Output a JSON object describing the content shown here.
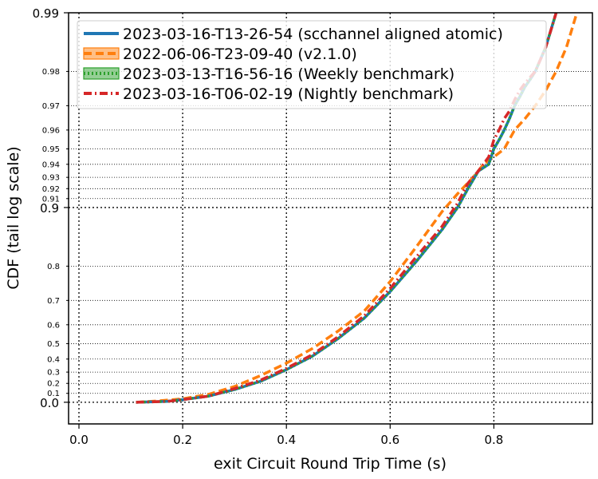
{
  "chart_data": {
    "type": "line",
    "title": "",
    "xlabel": "exit Circuit Round Trip Time (s)",
    "ylabel": "CDF (tail log scale)",
    "xlim": [
      -0.02,
      0.99
    ],
    "x_ticks": [
      0.0,
      0.2,
      0.4,
      0.6,
      0.8
    ],
    "x_tick_labels": [
      "0.0",
      "0.2",
      "0.4",
      "0.6",
      "0.8"
    ],
    "y_scale": "tail-log",
    "y_major_ticks": [
      0.0,
      0.9,
      0.99
    ],
    "y_major_labels": [
      "0.0",
      "0.9",
      "0.99"
    ],
    "y_minor_ticks": [
      0.1,
      0.2,
      0.3,
      0.4,
      0.5,
      0.6,
      0.7,
      0.8,
      0.91,
      0.92,
      0.93,
      0.94,
      0.95,
      0.96,
      0.97,
      0.98
    ],
    "y_minor_labels": [
      "0.1",
      "0.2",
      "0.3",
      "0.4",
      "0.5",
      "0.6",
      "0.7",
      "0.8",
      "0.91",
      "0.92",
      "0.93",
      "0.94",
      "0.95",
      "0.96",
      "0.97",
      "0.98"
    ],
    "grid": true,
    "legend_position": "top-left",
    "series": [
      {
        "name": "2023-03-16-T13-26-54 (scchannel aligned atomic)",
        "color": "#1f77b4",
        "style": "solid",
        "x": [
          0.11,
          0.17,
          0.2,
          0.25,
          0.3,
          0.35,
          0.4,
          0.45,
          0.5,
          0.55,
          0.6,
          0.65,
          0.7,
          0.73,
          0.75,
          0.77,
          0.79,
          0.8,
          0.81,
          0.82,
          0.83,
          0.84,
          0.85,
          0.86,
          0.87,
          0.88,
          0.9,
          0.92
        ],
        "y": [
          0.0,
          0.01,
          0.03,
          0.07,
          0.14,
          0.22,
          0.32,
          0.42,
          0.53,
          0.63,
          0.73,
          0.81,
          0.87,
          0.9,
          0.92,
          0.935,
          0.94,
          0.95,
          0.955,
          0.96,
          0.965,
          0.97,
          0.973,
          0.976,
          0.978,
          0.98,
          0.985,
          0.99
        ]
      },
      {
        "name": "2022-06-06-T23-09-40 (v2.1.0)",
        "color": "#ff7f0e",
        "style": "dashed",
        "x": [
          0.11,
          0.15,
          0.2,
          0.25,
          0.3,
          0.35,
          0.4,
          0.45,
          0.5,
          0.55,
          0.6,
          0.65,
          0.7,
          0.73,
          0.76,
          0.78,
          0.8,
          0.82,
          0.84,
          0.86,
          0.88,
          0.9,
          0.92,
          0.94,
          0.96
        ],
        "y": [
          0.0,
          0.015,
          0.04,
          0.09,
          0.17,
          0.27,
          0.37,
          0.47,
          0.57,
          0.66,
          0.76,
          0.84,
          0.895,
          0.915,
          0.93,
          0.94,
          0.945,
          0.95,
          0.96,
          0.965,
          0.97,
          0.975,
          0.98,
          0.985,
          0.99
        ]
      },
      {
        "name": "2023-03-13-T16-56-16 (Weekly benchmark)",
        "color": "#2ca02c",
        "style": "dotted",
        "x": [
          0.11,
          0.17,
          0.2,
          0.25,
          0.3,
          0.35,
          0.4,
          0.45,
          0.5,
          0.55,
          0.6,
          0.65,
          0.7,
          0.73,
          0.75,
          0.77,
          0.79,
          0.8,
          0.81,
          0.82,
          0.83,
          0.84,
          0.85,
          0.86,
          0.87,
          0.88,
          0.9,
          0.92
        ],
        "y": [
          0.0,
          0.01,
          0.03,
          0.07,
          0.14,
          0.22,
          0.32,
          0.42,
          0.53,
          0.63,
          0.73,
          0.81,
          0.87,
          0.9,
          0.92,
          0.935,
          0.94,
          0.95,
          0.955,
          0.96,
          0.965,
          0.97,
          0.973,
          0.976,
          0.978,
          0.98,
          0.985,
          0.99
        ]
      },
      {
        "name": "2023-03-16-T06-02-19 (Nightly benchmark)",
        "color": "#d62728",
        "style": "dashdot",
        "x": [
          0.11,
          0.17,
          0.2,
          0.25,
          0.3,
          0.35,
          0.4,
          0.45,
          0.5,
          0.55,
          0.6,
          0.65,
          0.7,
          0.73,
          0.75,
          0.77,
          0.79,
          0.8,
          0.81,
          0.82,
          0.83,
          0.84,
          0.85,
          0.86,
          0.88,
          0.9,
          0.92
        ],
        "y": [
          0.0,
          0.01,
          0.03,
          0.07,
          0.15,
          0.23,
          0.33,
          0.43,
          0.54,
          0.64,
          0.74,
          0.82,
          0.875,
          0.905,
          0.925,
          0.935,
          0.945,
          0.955,
          0.96,
          0.965,
          0.968,
          0.972,
          0.975,
          0.977,
          0.98,
          0.985,
          0.99
        ]
      }
    ]
  }
}
